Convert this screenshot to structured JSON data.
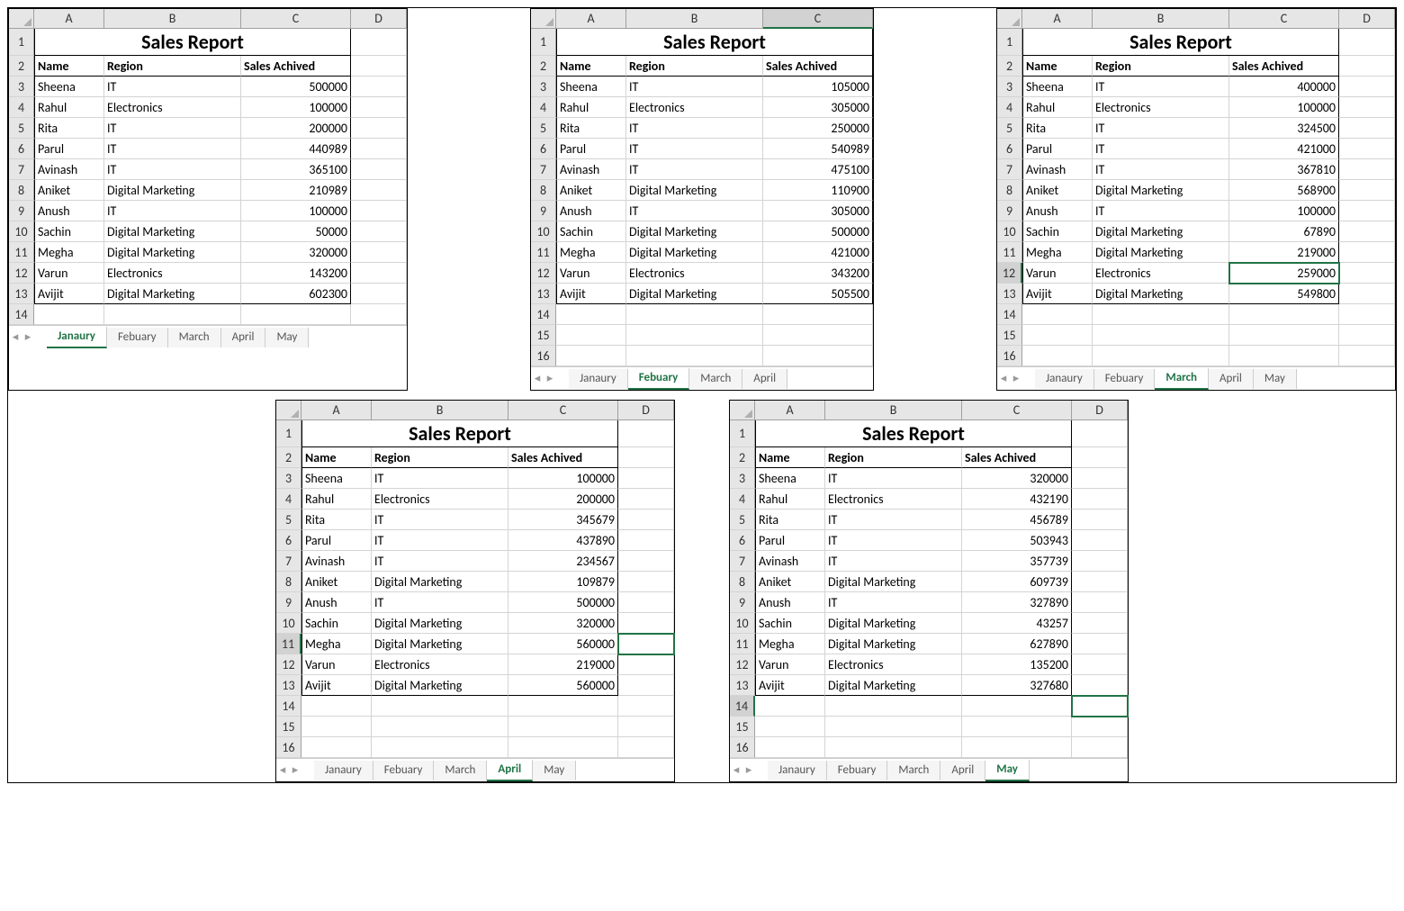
{
  "title": "Sales Report",
  "headers": [
    "Name",
    "Region",
    "Sales Achived"
  ],
  "column_letters": [
    "A",
    "B",
    "C",
    "D"
  ],
  "column_letters_short": [
    "A",
    "B",
    "C"
  ],
  "colors": {
    "header_bg": "#e6e6e6",
    "grid_line": "#d4d4d4",
    "tab_active": "#217346",
    "selection": "#217346"
  },
  "layout": {
    "panel_top_col_widths": {
      "rowhdr": 28,
      "A": 78,
      "B": 152,
      "C": 122,
      "D": 62
    },
    "panel_top_col_widths_short": {
      "rowhdr": 28,
      "A": 78,
      "B": 152,
      "C": 122
    },
    "tab_height": 26,
    "title_fontsize": 22
  },
  "tabs_all": [
    "Janaury",
    "Febuary",
    "March",
    "April",
    "May"
  ],
  "panels": [
    {
      "id": "jan",
      "active_tab": "Janaury",
      "cols": [
        "A",
        "B",
        "C",
        "D"
      ],
      "extra_rows": [
        14
      ],
      "selected_col": null,
      "selected_row": null,
      "active_cell": null,
      "rows": [
        [
          "Sheena",
          "IT",
          "500000"
        ],
        [
          "Rahul",
          "Electronics",
          "100000"
        ],
        [
          "Rita",
          "IT",
          "200000"
        ],
        [
          "Parul",
          "IT",
          "440989"
        ],
        [
          "Avinash",
          "IT",
          "365100"
        ],
        [
          "Aniket",
          "Digital Marketing",
          "210989"
        ],
        [
          "Anush",
          "IT",
          "100000"
        ],
        [
          "Sachin",
          "Digital Marketing",
          "50000"
        ],
        [
          "Megha",
          "Digital Marketing",
          "320000"
        ],
        [
          "Varun",
          "Electronics",
          "143200"
        ],
        [
          "Avijit",
          "Digital Marketing",
          "602300"
        ]
      ]
    },
    {
      "id": "feb",
      "active_tab": "Febuary",
      "cols": [
        "A",
        "B",
        "C"
      ],
      "tabs": [
        "Janaury",
        "Febuary",
        "March",
        "April"
      ],
      "extra_rows": [
        14,
        15,
        16
      ],
      "selected_col": "C",
      "selected_row": null,
      "active_cell": null,
      "rows": [
        [
          "Sheena",
          "IT",
          "105000"
        ],
        [
          "Rahul",
          "Electronics",
          "305000"
        ],
        [
          "Rita",
          "IT",
          "250000"
        ],
        [
          "Parul",
          "IT",
          "540989"
        ],
        [
          "Avinash",
          "IT",
          "475100"
        ],
        [
          "Aniket",
          "Digital Marketing",
          "110900"
        ],
        [
          "Anush",
          "IT",
          "305000"
        ],
        [
          "Sachin",
          "Digital Marketing",
          "500000"
        ],
        [
          "Megha",
          "Digital Marketing",
          "421000"
        ],
        [
          "Varun",
          "Electronics",
          "343200"
        ],
        [
          "Avijit",
          "Digital Marketing",
          "505500"
        ]
      ]
    },
    {
      "id": "mar",
      "active_tab": "March",
      "cols": [
        "A",
        "B",
        "C",
        "D"
      ],
      "extra_rows": [
        14,
        15,
        16
      ],
      "selected_col": null,
      "selected_row": 12,
      "active_cell": "C12",
      "rows": [
        [
          "Sheena",
          "IT",
          "400000"
        ],
        [
          "Rahul",
          "Electronics",
          "100000"
        ],
        [
          "Rita",
          "IT",
          "324500"
        ],
        [
          "Parul",
          "IT",
          "421000"
        ],
        [
          "Avinash",
          "IT",
          "367810"
        ],
        [
          "Aniket",
          "Digital Marketing",
          "568900"
        ],
        [
          "Anush",
          "IT",
          "100000"
        ],
        [
          "Sachin",
          "Digital Marketing",
          "67890"
        ],
        [
          "Megha",
          "Digital Marketing",
          "219000"
        ],
        [
          "Varun",
          "Electronics",
          "259000"
        ],
        [
          "Avijit",
          "Digital Marketing",
          "549800"
        ]
      ]
    },
    {
      "id": "apr",
      "active_tab": "April",
      "cols": [
        "A",
        "B",
        "C",
        "D"
      ],
      "extra_rows": [
        14,
        15,
        16
      ],
      "selected_col": null,
      "selected_row": 11,
      "active_cell": "D11",
      "rows": [
        [
          "Sheena",
          "IT",
          "100000"
        ],
        [
          "Rahul",
          "Electronics",
          "200000"
        ],
        [
          "Rita",
          "IT",
          "345679"
        ],
        [
          "Parul",
          "IT",
          "437890"
        ],
        [
          "Avinash",
          "IT",
          "234567"
        ],
        [
          "Aniket",
          "Digital Marketing",
          "109879"
        ],
        [
          "Anush",
          "IT",
          "500000"
        ],
        [
          "Sachin",
          "Digital Marketing",
          "320000"
        ],
        [
          "Megha",
          "Digital Marketing",
          "560000"
        ],
        [
          "Varun",
          "Electronics",
          "219000"
        ],
        [
          "Avijit",
          "Digital Marketing",
          "560000"
        ]
      ]
    },
    {
      "id": "may",
      "active_tab": "May",
      "cols": [
        "A",
        "B",
        "C",
        "D"
      ],
      "extra_rows": [
        14,
        15,
        16
      ],
      "selected_col": null,
      "selected_row": 14,
      "active_cell": "D14",
      "rows": [
        [
          "Sheena",
          "IT",
          "320000"
        ],
        [
          "Rahul",
          "Electronics",
          "432190"
        ],
        [
          "Rita",
          "IT",
          "456789"
        ],
        [
          "Parul",
          "IT",
          "503943"
        ],
        [
          "Avinash",
          "IT",
          "357739"
        ],
        [
          "Aniket",
          "Digital Marketing",
          "609739"
        ],
        [
          "Anush",
          "IT",
          "327890"
        ],
        [
          "Sachin",
          "Digital Marketing",
          "43257"
        ],
        [
          "Megha",
          "Digital Marketing",
          "627890"
        ],
        [
          "Varun",
          "Electronics",
          "135200"
        ],
        [
          "Avijit",
          "Digital Marketing",
          "327680"
        ]
      ]
    }
  ]
}
